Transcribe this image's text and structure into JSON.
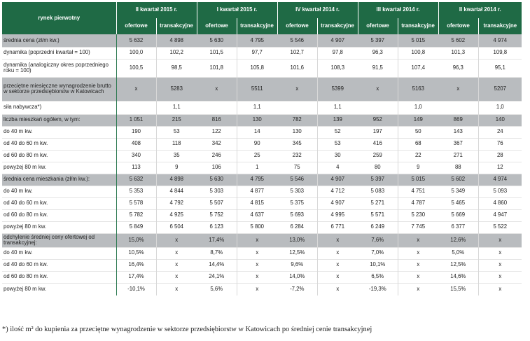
{
  "table": {
    "corner_label": "rynek pierwotny",
    "periods": [
      "II kwartał 2015 r.",
      "I kwartał 2015 r.",
      "IV kwartał 2014 r.",
      "III kwartał 2014 r.",
      "II kwartał 2014 r."
    ],
    "subheaders": [
      "ofertowe",
      "transakcyjne"
    ],
    "rows": [
      {
        "label": "średnia cena (zł/m kw.)",
        "shade": true,
        "h": 18,
        "values": [
          "5 632",
          "4 898",
          "5 630",
          "4 795",
          "5 546",
          "4 907",
          "5 397",
          "5 015",
          "5 602",
          "4 974"
        ]
      },
      {
        "label": "dynamika (poprzedni kwartał = 100)",
        "shade": false,
        "h": 17,
        "values": [
          "100,0",
          "102,2",
          "101,5",
          "97,7",
          "102,7",
          "97,8",
          "96,3",
          "100,8",
          "101,3",
          "109,8"
        ]
      },
      {
        "label": "dynamika (analogiczny okres poprzedniego roku = 100)",
        "shade": false,
        "h": 26,
        "values": [
          "100,5",
          "98,5",
          "101,8",
          "105,8",
          "101,6",
          "108,3",
          "91,5",
          "107,4",
          "96,3",
          "95,1"
        ]
      },
      {
        "label": "przeciętne miesięczne wynagrodzenie brutto w sektorze przedsiębiorstw w Katowicach",
        "shade": true,
        "h": 34,
        "values": [
          "x",
          "5283",
          "x",
          "5511",
          "x",
          "5399",
          "x",
          "5163",
          "x",
          "5207"
        ]
      },
      {
        "label": "siła nabywcza*)",
        "shade": false,
        "h": 19,
        "values": [
          "",
          "1,1",
          "",
          "1,1",
          "",
          "1,1",
          "",
          "1,0",
          "",
          "1,0"
        ]
      },
      {
        "label": "liczba mieszkań ogółem, w tym:",
        "shade": true,
        "h": 17,
        "values": [
          "1 051",
          "215",
          "816",
          "130",
          "782",
          "139",
          "952",
          "149",
          "869",
          "140"
        ]
      },
      {
        "label": "do 40 m kw.",
        "shade": false,
        "h": 17,
        "values": [
          "190",
          "53",
          "122",
          "14",
          "130",
          "52",
          "197",
          "50",
          "143",
          "24"
        ]
      },
      {
        "label": "od 40 do 60 m kw.",
        "shade": false,
        "h": 17,
        "values": [
          "408",
          "118",
          "342",
          "90",
          "345",
          "53",
          "416",
          "68",
          "367",
          "76"
        ]
      },
      {
        "label": "od 60 do 80 m kw.",
        "shade": false,
        "h": 17,
        "values": [
          "340",
          "35",
          "246",
          "25",
          "232",
          "30",
          "259",
          "22",
          "271",
          "28"
        ]
      },
      {
        "label": "powyżej 80 m kw.",
        "shade": false,
        "h": 17,
        "values": [
          "113",
          "9",
          "106",
          "1",
          "75",
          "4",
          "80",
          "9",
          "88",
          "12"
        ]
      },
      {
        "label": "średnia cena mieszkania (zł/m kw.):",
        "shade": true,
        "h": 17,
        "values": [
          "5 632",
          "4 898",
          "5 630",
          "4 795",
          "5 546",
          "4 907",
          "5 397",
          "5 015",
          "5 602",
          "4 974"
        ]
      },
      {
        "label": "do 40 m kw.",
        "shade": false,
        "h": 17,
        "values": [
          "5 353",
          "4 844",
          "5 303",
          "4 877",
          "5 303",
          "4 712",
          "5 083",
          "4 751",
          "5 349",
          "5 093"
        ]
      },
      {
        "label": "od 40 do 60 m  kw.",
        "shade": false,
        "h": 17,
        "values": [
          "5 578",
          "4 792",
          "5 507",
          "4 815",
          "5 375",
          "4 907",
          "5 271",
          "4 787",
          "5 465",
          "4 860"
        ]
      },
      {
        "label": "od 60 do 80 m  kw.",
        "shade": false,
        "h": 17,
        "values": [
          "5 782",
          "4 925",
          "5 752",
          "4 637",
          "5 693",
          "4 995",
          "5 571",
          "5 230",
          "5 669",
          "4 947"
        ]
      },
      {
        "label": "powyżej 80 m kw.",
        "shade": false,
        "h": 17,
        "values": [
          "5 849",
          "6 504",
          "6 123",
          "5 800",
          "6 284",
          "6 771",
          "6 249",
          "7 745",
          "6 377",
          "5 522"
        ]
      },
      {
        "label": "odchylenie średniej ceny ofertowej od transakcyjnej:",
        "shade": true,
        "h": 20,
        "values": [
          "15,0%",
          "x",
          "17,4%",
          "x",
          "13,0%",
          "x",
          "7,6%",
          "x",
          "12,6%",
          "x"
        ]
      },
      {
        "label": "do 40 m kw.",
        "shade": false,
        "h": 17,
        "values": [
          "10,5%",
          "x",
          "8,7%",
          "x",
          "12,5%",
          "x",
          "7,0%",
          "x",
          "5,0%",
          "x"
        ]
      },
      {
        "label": "od 40 do 60 m kw.",
        "shade": false,
        "h": 17,
        "values": [
          "16,4%",
          "x",
          "14,4%",
          "x",
          "9,6%",
          "x",
          "10,1%",
          "x",
          "12,5%",
          "x"
        ]
      },
      {
        "label": "od 60 do 80 m kw.",
        "shade": false,
        "h": 17,
        "values": [
          "17,4%",
          "x",
          "24,1%",
          "x",
          "14,0%",
          "x",
          "6,5%",
          "x",
          "14,6%",
          "x"
        ]
      },
      {
        "label": "powyżej 80 m kw.",
        "shade": false,
        "h": 18,
        "values": [
          "-10,1%",
          "x",
          "5,6%",
          "x",
          "-7,2%",
          "x",
          "-19,3%",
          "x",
          "15,5%",
          "x"
        ]
      }
    ]
  },
  "footnote": "*) ilość m² do kupienia za przeciętne wynagrodzenie w sektorze przedsiębiorstw w Katowicach po średniej cenie transakcyjnej"
}
